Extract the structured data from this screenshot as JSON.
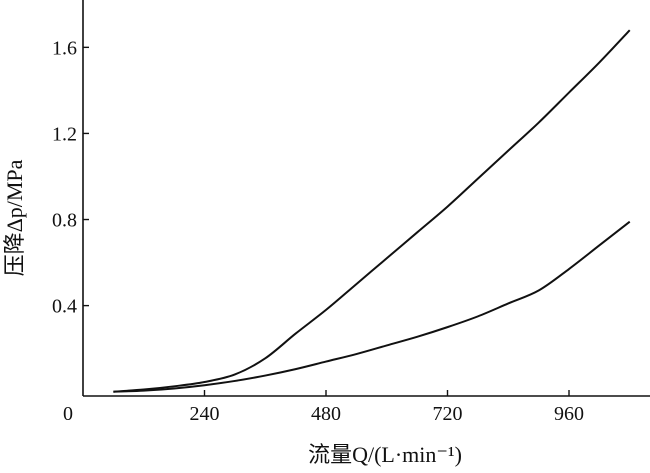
{
  "chart_data": {
    "type": "line",
    "title": "",
    "xlabel": "流量Q/(L·min⁻¹)",
    "ylabel": "压降Δp/MPa",
    "xlim": [
      0,
      1120
    ],
    "ylim": [
      -0.02,
      1.82
    ],
    "xticks": [
      0,
      240,
      480,
      720,
      960
    ],
    "xtick_labels": [
      "0",
      "240",
      "480",
      "720",
      "960"
    ],
    "yticks": [
      0.4,
      0.8,
      1.2,
      1.6
    ],
    "ytick_labels": [
      "0.4",
      "0.8",
      "1.2",
      "1.6"
    ],
    "grid": false,
    "legend": "none",
    "series": [
      {
        "x": [
          60,
          120,
          180,
          240,
          300,
          360,
          420,
          480,
          540,
          600,
          660,
          720,
          780,
          840,
          900,
          960,
          1020,
          1080
        ],
        "values": [
          0.0,
          0.01,
          0.025,
          0.045,
          0.08,
          0.155,
          0.27,
          0.38,
          0.5,
          0.62,
          0.74,
          0.86,
          0.99,
          1.12,
          1.25,
          1.39,
          1.53,
          1.68
        ]
      },
      {
        "x": [
          60,
          120,
          180,
          240,
          300,
          360,
          420,
          480,
          540,
          600,
          660,
          720,
          780,
          840,
          900,
          960,
          1020,
          1080
        ],
        "values": [
          0.0,
          0.005,
          0.015,
          0.03,
          0.05,
          0.075,
          0.105,
          0.14,
          0.175,
          0.215,
          0.255,
          0.3,
          0.35,
          0.41,
          0.47,
          0.57,
          0.68,
          0.79
        ]
      }
    ]
  }
}
